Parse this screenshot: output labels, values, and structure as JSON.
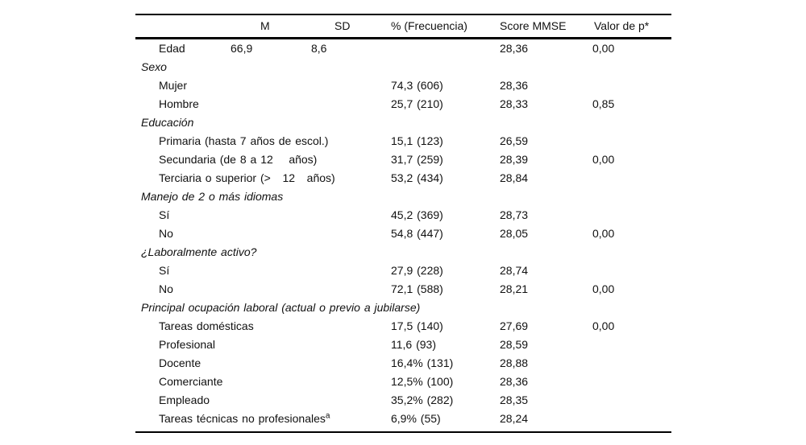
{
  "table": {
    "headers": {
      "m": "M",
      "sd": "SD",
      "pct": "% (Frecuencia)",
      "score": "Score MMSE",
      "p": "Valor de p*"
    },
    "rows": [
      {
        "type": "row",
        "label": "Edad",
        "m": "66,9",
        "sd": "8,6",
        "score": "28,36",
        "p": "0,00"
      },
      {
        "type": "section",
        "label": "Sexo"
      },
      {
        "type": "item",
        "label": "Mujer",
        "pct": "74,3 (606)",
        "score": "28,36"
      },
      {
        "type": "item",
        "label": "Hombre",
        "pct": "25,7 (210)",
        "score": "28,33",
        "p": "0,85"
      },
      {
        "type": "section",
        "label": "Educación"
      },
      {
        "type": "item",
        "label": "Primaria (hasta 7 años de escol.)",
        "pct": "15,1 (123)",
        "score": "26,59"
      },
      {
        "type": "item",
        "label": "Secundaria (de 8 a 12    años)",
        "pct": "31,7 (259)",
        "score": "28,39",
        "p": "0,00"
      },
      {
        "type": "item",
        "label": "Terciaria o superior (>   12   años)",
        "pct": "53,2 (434)",
        "score": "28,84"
      },
      {
        "type": "section",
        "label": "Manejo de 2 o más idiomas"
      },
      {
        "type": "item",
        "label": "Sí",
        "pct": "45,2 (369)",
        "score": "28,73"
      },
      {
        "type": "item",
        "label": "No",
        "pct": "54,8 (447)",
        "score": "28,05",
        "p": "0,00"
      },
      {
        "type": "section",
        "label": "¿Laboralmente activo?"
      },
      {
        "type": "item",
        "label": "Sí",
        "pct": "27,9 (228)",
        "score": "28,74"
      },
      {
        "type": "item",
        "label": "No",
        "pct": "72,1 (588)",
        "score": "28,21",
        "p": "0,00"
      },
      {
        "type": "section",
        "label": "Principal ocupación laboral (actual o previo a jubilarse)"
      },
      {
        "type": "item",
        "label": "Tareas domésticas",
        "pct": "17,5 (140)",
        "score": "27,69",
        "p": "0,00"
      },
      {
        "type": "item",
        "label": "Profesional",
        "pct": "11,6 (93)",
        "score": "28,59"
      },
      {
        "type": "item",
        "label": "Docente",
        "pct": "16,4% (131)",
        "score": "28,88"
      },
      {
        "type": "item",
        "label": "Comerciante",
        "pct": "12,5% (100)",
        "score": "28,36"
      },
      {
        "type": "item",
        "label": "Empleado",
        "pct": "35,2% (282)",
        "score": "28,35"
      },
      {
        "type": "item",
        "label": "Tareas técnicas no profesionales",
        "label_sup": "a",
        "pct": "6,9% (55)",
        "score": "28,24"
      }
    ]
  }
}
